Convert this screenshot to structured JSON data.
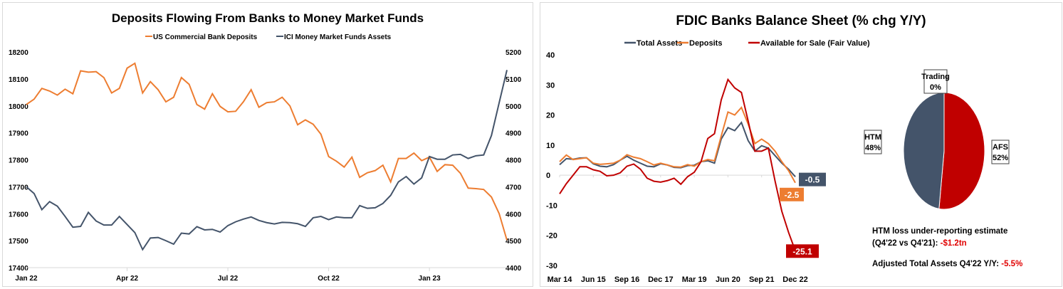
{
  "colors": {
    "orange": "#ed7d31",
    "navy": "#44546a",
    "red": "#c00000"
  },
  "chart_data": [
    {
      "type": "line",
      "title": "Deposits Flowing From Banks to Money Market Funds",
      "x_ticks": [
        {
          "index": 0,
          "label": "Jan 22"
        },
        {
          "index": 13,
          "label": "Apr 22"
        },
        {
          "index": 26,
          "label": "Jul 22"
        },
        {
          "index": 39,
          "label": "Oct 22"
        },
        {
          "index": 52,
          "label": "Jan 23"
        }
      ],
      "ylim_left": [
        17400,
        18200
      ],
      "yticks_left": [
        17400,
        17500,
        17600,
        17700,
        17800,
        17900,
        18000,
        18100,
        18200
      ],
      "ylim_right": [
        4400,
        5200
      ],
      "yticks_right": [
        4400,
        4500,
        4600,
        4700,
        4800,
        4900,
        5000,
        5100,
        5200
      ],
      "legend": "top",
      "series": [
        {
          "name": "US Commercial Bank Deposits",
          "axis": "left",
          "color": "#ed7d31",
          "values": [
            18005,
            18025,
            18065,
            18055,
            18040,
            18062,
            18045,
            18130,
            18125,
            18127,
            18105,
            18048,
            18065,
            18140,
            18158,
            18048,
            18090,
            18060,
            18015,
            18032,
            18105,
            18080,
            18005,
            17988,
            18045,
            17998,
            17978,
            17980,
            18015,
            18060,
            17995,
            18012,
            18015,
            18032,
            18000,
            17930,
            17948,
            17932,
            17895,
            17812,
            17795,
            17773,
            17810,
            17735,
            17752,
            17760,
            17780,
            17718,
            17805,
            17805,
            17825,
            17797,
            17810,
            17757,
            17782,
            17780,
            17750,
            17695,
            17693,
            17690,
            17662,
            17600,
            17502
          ]
        },
        {
          "name": "ICI Money Market Funds Assets",
          "axis": "right",
          "color": "#44546a",
          "values": [
            4700,
            4675,
            4615,
            4645,
            4628,
            4590,
            4550,
            4553,
            4605,
            4573,
            4558,
            4558,
            4590,
            4560,
            4530,
            4467,
            4510,
            4512,
            4500,
            4487,
            4528,
            4525,
            4552,
            4540,
            4542,
            4532,
            4556,
            4570,
            4580,
            4588,
            4575,
            4567,
            4562,
            4568,
            4567,
            4563,
            4553,
            4585,
            4590,
            4578,
            4588,
            4585,
            4585,
            4630,
            4620,
            4622,
            4638,
            4668,
            4718,
            4738,
            4710,
            4733,
            4812,
            4802,
            4802,
            4818,
            4820,
            4805,
            4815,
            4818,
            4890,
            5012,
            5133
          ]
        }
      ]
    },
    {
      "type": "line",
      "title": "FDIC Banks Balance Sheet (% chg Y/Y)",
      "x_ticks": [
        {
          "index": 0,
          "label": "Mar 14"
        },
        {
          "index": 5,
          "label": "Jun 15"
        },
        {
          "index": 10,
          "label": "Sep 16"
        },
        {
          "index": 15,
          "label": "Dec 17"
        },
        {
          "index": 20,
          "label": "Mar 19"
        },
        {
          "index": 25,
          "label": "Jun 20"
        },
        {
          "index": 30,
          "label": "Sep 21"
        },
        {
          "index": 35,
          "label": "Dec 22"
        }
      ],
      "ylim": [
        -30,
        40
      ],
      "yticks": [
        -30,
        -20,
        -10,
        0,
        10,
        20,
        30,
        40
      ],
      "legend": "top",
      "series": [
        {
          "name": "Total Assets",
          "color": "#44546a",
          "end_label": "-0.5",
          "values": [
            3.5,
            5.5,
            5.3,
            5.7,
            5.8,
            3.8,
            3,
            2.8,
            3.5,
            5,
            6.3,
            5,
            4,
            3,
            2.8,
            3.8,
            3.4,
            2.6,
            2.5,
            3.2,
            3.3,
            4.5,
            4.8,
            4,
            12,
            15.8,
            14.8,
            17.5,
            11.5,
            8,
            9.8,
            9,
            6.5,
            4,
            2,
            -0.5
          ]
        },
        {
          "name": "Deposits",
          "color": "#ed7d31",
          "end_label": "-2.5",
          "values": [
            4.5,
            6.7,
            5.2,
            5.5,
            5.8,
            4,
            3.6,
            3.8,
            4,
            5,
            6.8,
            6,
            5.5,
            4.5,
            3.4,
            4,
            3.4,
            2.8,
            2.7,
            3.5,
            3,
            4.5,
            5.2,
            4.8,
            13,
            21,
            20,
            22.5,
            17,
            10.5,
            12,
            10.5,
            8,
            4.5,
            1.5,
            -2.5
          ]
        },
        {
          "name": "Available for Sale (Fair Value)",
          "color": "#c00000",
          "end_label": "-25.1",
          "values": [
            -6.2,
            -2.8,
            0,
            2.8,
            2.8,
            1.8,
            1.3,
            -0.2,
            0,
            0.8,
            3,
            3.7,
            2,
            -1,
            -2,
            -2.3,
            -1.8,
            -1,
            -3,
            -0.5,
            1,
            4.5,
            12.2,
            13.8,
            25,
            31.8,
            29,
            27.5,
            18,
            8,
            8,
            9,
            -2,
            -12,
            -19,
            -25.1
          ]
        }
      ]
    },
    {
      "type": "pie",
      "slices": [
        {
          "name": "AFS",
          "pct_label": "52%",
          "value": 52,
          "color": "#c00000"
        },
        {
          "name": "HTM",
          "pct_label": "48%",
          "value": 48,
          "color": "#44546a"
        },
        {
          "name": "Trading",
          "pct_label": "0%",
          "value": 0,
          "color": "#ffffff"
        }
      ]
    }
  ],
  "notes": {
    "line1": "HTM loss under-reporting estimate",
    "line2": "(Q4'22 vs Q4'21): ",
    "line2_value": "-$1.2tn",
    "line3": "Adjusted Total Assets Q4'22 Y/Y: ",
    "line3_value": "-5.5%"
  }
}
